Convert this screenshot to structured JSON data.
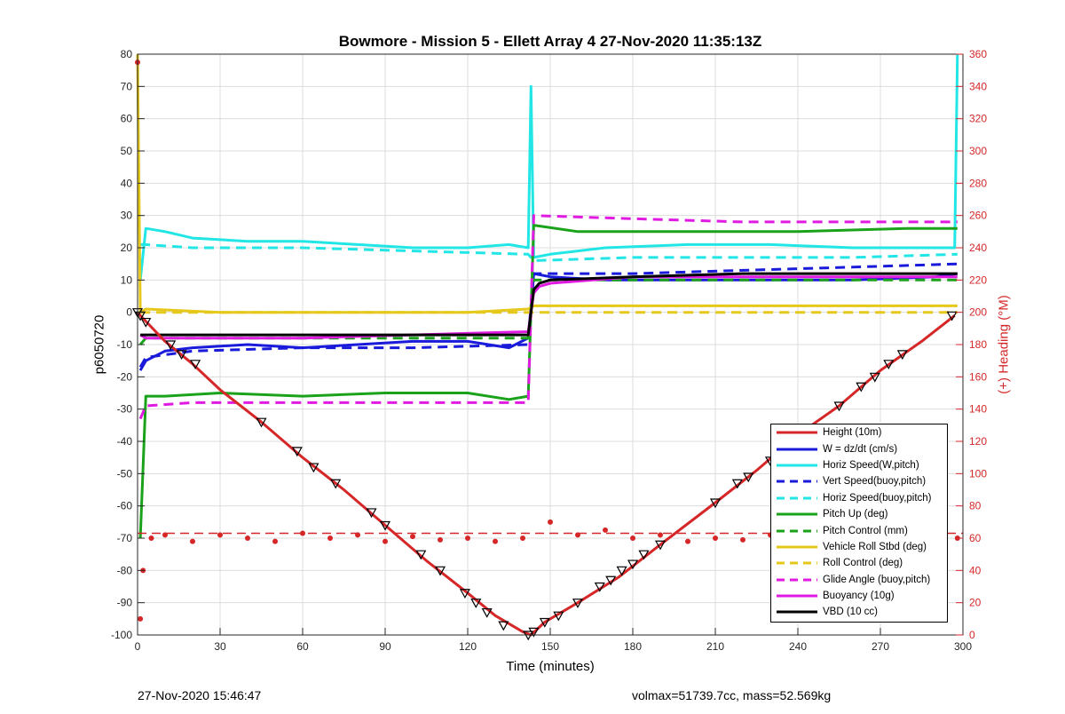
{
  "title": "Bowmore - Mission 5 - Ellett Array 4 27-Nov-2020 11:35:13Z",
  "footer": {
    "timestamp": "27-Nov-2020 15:46:47",
    "stats": "volmax=51739.7cc, mass=52.569kg"
  },
  "chart_data": {
    "type": "line",
    "title": "Bowmore - Mission 5 - Ellett Array 4 27-Nov-2020 11:35:13Z",
    "xlabel": "Time (minutes)",
    "ylabel": "p6050720",
    "y2label": "(+) Heading (°M)",
    "xlim": [
      0,
      300
    ],
    "ylim": [
      -100,
      80
    ],
    "y2lim": [
      0,
      360
    ],
    "xticks": [
      "0",
      "30",
      "60",
      "90",
      "120",
      "150",
      "180",
      "210",
      "240",
      "270",
      "300"
    ],
    "yticks": [
      "-100",
      "-90",
      "-80",
      "-70",
      "-60",
      "-50",
      "-40",
      "-30",
      "-20",
      "-10",
      "0",
      "10",
      "20",
      "30",
      "40",
      "50",
      "60",
      "70",
      "80"
    ],
    "y2ticks": [
      "0",
      "20",
      "40",
      "60",
      "80",
      "100",
      "120",
      "140",
      "160",
      "180",
      "200",
      "220",
      "240",
      "260",
      "280",
      "300",
      "320",
      "340",
      "360"
    ],
    "grid": true,
    "legend_position": "bottom-right",
    "series": [
      {
        "name": "Height (10m)",
        "color": "#d62728",
        "style": "solid",
        "x": [
          0,
          1,
          10,
          20,
          30,
          45,
          60,
          75,
          90,
          105,
          120,
          130,
          140,
          143,
          148,
          160,
          175,
          190,
          210,
          225,
          240,
          255,
          270,
          285,
          297
        ],
        "y": [
          0,
          -1,
          -9,
          -16,
          -24,
          -34,
          -45,
          -55,
          -66,
          -77,
          -87,
          -94,
          -99,
          -100,
          -96,
          -90,
          -82,
          -72,
          -59,
          -49,
          -38,
          -29,
          -18,
          -9,
          -1
        ]
      },
      {
        "name": "W = dz/dt (cm/s)",
        "color": "#1a1adb",
        "style": "solid",
        "x": [
          1,
          3,
          10,
          20,
          40,
          60,
          80,
          100,
          120,
          135,
          142,
          144,
          150,
          170,
          200,
          230,
          260,
          290,
          298
        ],
        "y": [
          -18,
          -15,
          -12,
          -11,
          -10,
          -11,
          -10,
          -9,
          -9,
          -11,
          -8,
          12,
          11,
          10,
          10,
          10,
          10,
          11,
          12
        ]
      },
      {
        "name": "Horiz Speed(W,pitch)",
        "color": "#22e6e6",
        "style": "solid",
        "x": [
          1,
          3,
          10,
          20,
          40,
          60,
          80,
          100,
          120,
          135,
          142,
          143,
          144,
          150,
          170,
          200,
          230,
          260,
          290,
          297,
          298
        ],
        "y": [
          10,
          26,
          25,
          23,
          22,
          22,
          21,
          20,
          20,
          21,
          20,
          70,
          17,
          18,
          20,
          21,
          21,
          20,
          20,
          20,
          80
        ]
      },
      {
        "name": "Vert Speed(buoy,pitch)",
        "color": "#1a1adb",
        "style": "dashed",
        "x": [
          1,
          3,
          20,
          60,
          100,
          142,
          144,
          180,
          220,
          260,
          298
        ],
        "y": [
          -17,
          -14,
          -12,
          -11,
          -11,
          -10,
          12,
          12,
          13,
          14,
          15
        ]
      },
      {
        "name": "Horiz Speed(buoy,pitch)",
        "color": "#22e6e6",
        "style": "dashed",
        "x": [
          1,
          3,
          20,
          60,
          100,
          142,
          144,
          180,
          220,
          260,
          298
        ],
        "y": [
          21,
          21,
          20,
          20,
          19,
          18,
          16,
          17,
          17,
          17,
          18
        ]
      },
      {
        "name": "Pitch Up (deg)",
        "color": "#1aa31a",
        "style": "solid",
        "x": [
          1,
          3,
          10,
          30,
          60,
          90,
          120,
          135,
          142,
          144,
          160,
          200,
          240,
          280,
          298
        ],
        "y": [
          -70,
          -26,
          -26,
          -25,
          -26,
          -25,
          -25,
          -27,
          -26,
          27,
          25,
          25,
          25,
          26,
          26
        ]
      },
      {
        "name": "Pitch Control (mm)",
        "color": "#1aa31a",
        "style": "dashed",
        "x": [
          1,
          3,
          20,
          60,
          100,
          142,
          144,
          180,
          220,
          260,
          298
        ],
        "y": [
          -10,
          -8,
          -8,
          -8,
          -8,
          -8,
          10,
          10,
          10,
          10,
          10
        ]
      },
      {
        "name": "Vehicle Roll Stbd (deg)",
        "color": "#e6c81a",
        "style": "solid",
        "x": [
          0,
          1,
          3,
          30,
          60,
          90,
          120,
          142,
          144,
          180,
          220,
          260,
          298
        ],
        "y": [
          80,
          0,
          1,
          0,
          0,
          0,
          0,
          1,
          2,
          2,
          2,
          2,
          2
        ]
      },
      {
        "name": "Roll Control (deg)",
        "color": "#e6c81a",
        "style": "dashed",
        "x": [
          1,
          3,
          30,
          60,
          90,
          120,
          142,
          144,
          180,
          220,
          260,
          298
        ],
        "y": [
          0,
          0,
          0,
          0,
          0,
          0,
          0,
          0,
          0,
          0,
          0,
          0
        ]
      },
      {
        "name": "Glide Angle (buoy,pitch)",
        "color": "#e01ae0",
        "style": "dashed",
        "x": [
          1,
          3,
          20,
          60,
          100,
          142,
          144,
          180,
          220,
          260,
          298
        ],
        "y": [
          -33,
          -29,
          -28,
          -28,
          -28,
          -28,
          30,
          29,
          28,
          28,
          28
        ]
      },
      {
        "name": "Buoyancy (10g)",
        "color": "#e01ae0",
        "style": "solid",
        "x": [
          1,
          3,
          30,
          60,
          100,
          142,
          144,
          146,
          150,
          180,
          220,
          260,
          298
        ],
        "y": [
          -7,
          -8,
          -8,
          -8,
          -7,
          -6,
          6,
          8,
          9,
          11,
          11,
          11,
          11
        ]
      },
      {
        "name": "VBD (10 cc)",
        "color": "#000000",
        "style": "solid",
        "x": [
          1,
          3,
          30,
          60,
          100,
          142,
          144,
          146,
          150,
          180,
          220,
          260,
          298
        ],
        "y": [
          -7,
          -7,
          -7,
          -7,
          -7,
          -7,
          7,
          9,
          10,
          11,
          12,
          12,
          12
        ]
      }
    ],
    "heading": {
      "name": "Heading",
      "axis": "right",
      "color": "#d62728",
      "x": [
        0,
        1,
        2,
        5,
        10,
        20,
        30,
        40,
        50,
        60,
        70,
        80,
        90,
        100,
        110,
        120,
        130,
        140,
        150,
        160,
        170,
        180,
        190,
        200,
        210,
        220,
        230,
        240,
        250,
        260,
        270,
        280,
        290,
        298
      ],
      "y": [
        355,
        10,
        40,
        60,
        62,
        58,
        62,
        60,
        58,
        63,
        60,
        62,
        58,
        61,
        59,
        60,
        58,
        60,
        70,
        62,
        65,
        60,
        62,
        58,
        60,
        59,
        62,
        60,
        58,
        62,
        60,
        58,
        62,
        60
      ],
      "reference": 63
    },
    "height_markers": {
      "x": [
        0,
        1,
        3,
        12,
        16,
        21,
        45,
        58,
        64,
        72,
        85,
        90,
        103,
        110,
        119,
        123,
        127,
        133,
        142,
        144,
        148,
        153,
        160,
        168,
        172,
        176,
        180,
        184,
        190,
        210,
        218,
        222,
        230,
        235,
        240,
        255,
        263,
        268,
        273,
        278,
        296
      ],
      "y": [
        0,
        -1,
        -3,
        -10,
        -13,
        -16,
        -34,
        -43,
        -48,
        -53,
        -62,
        -66,
        -75,
        -80,
        -87,
        -90,
        -93,
        -97,
        -100,
        -99,
        -96,
        -94,
        -90,
        -85,
        -83,
        -80,
        -78,
        -75,
        -72,
        -59,
        -53,
        -51,
        -46,
        -42,
        -38,
        -29,
        -23,
        -20,
        -16,
        -13,
        -1
      ]
    }
  }
}
